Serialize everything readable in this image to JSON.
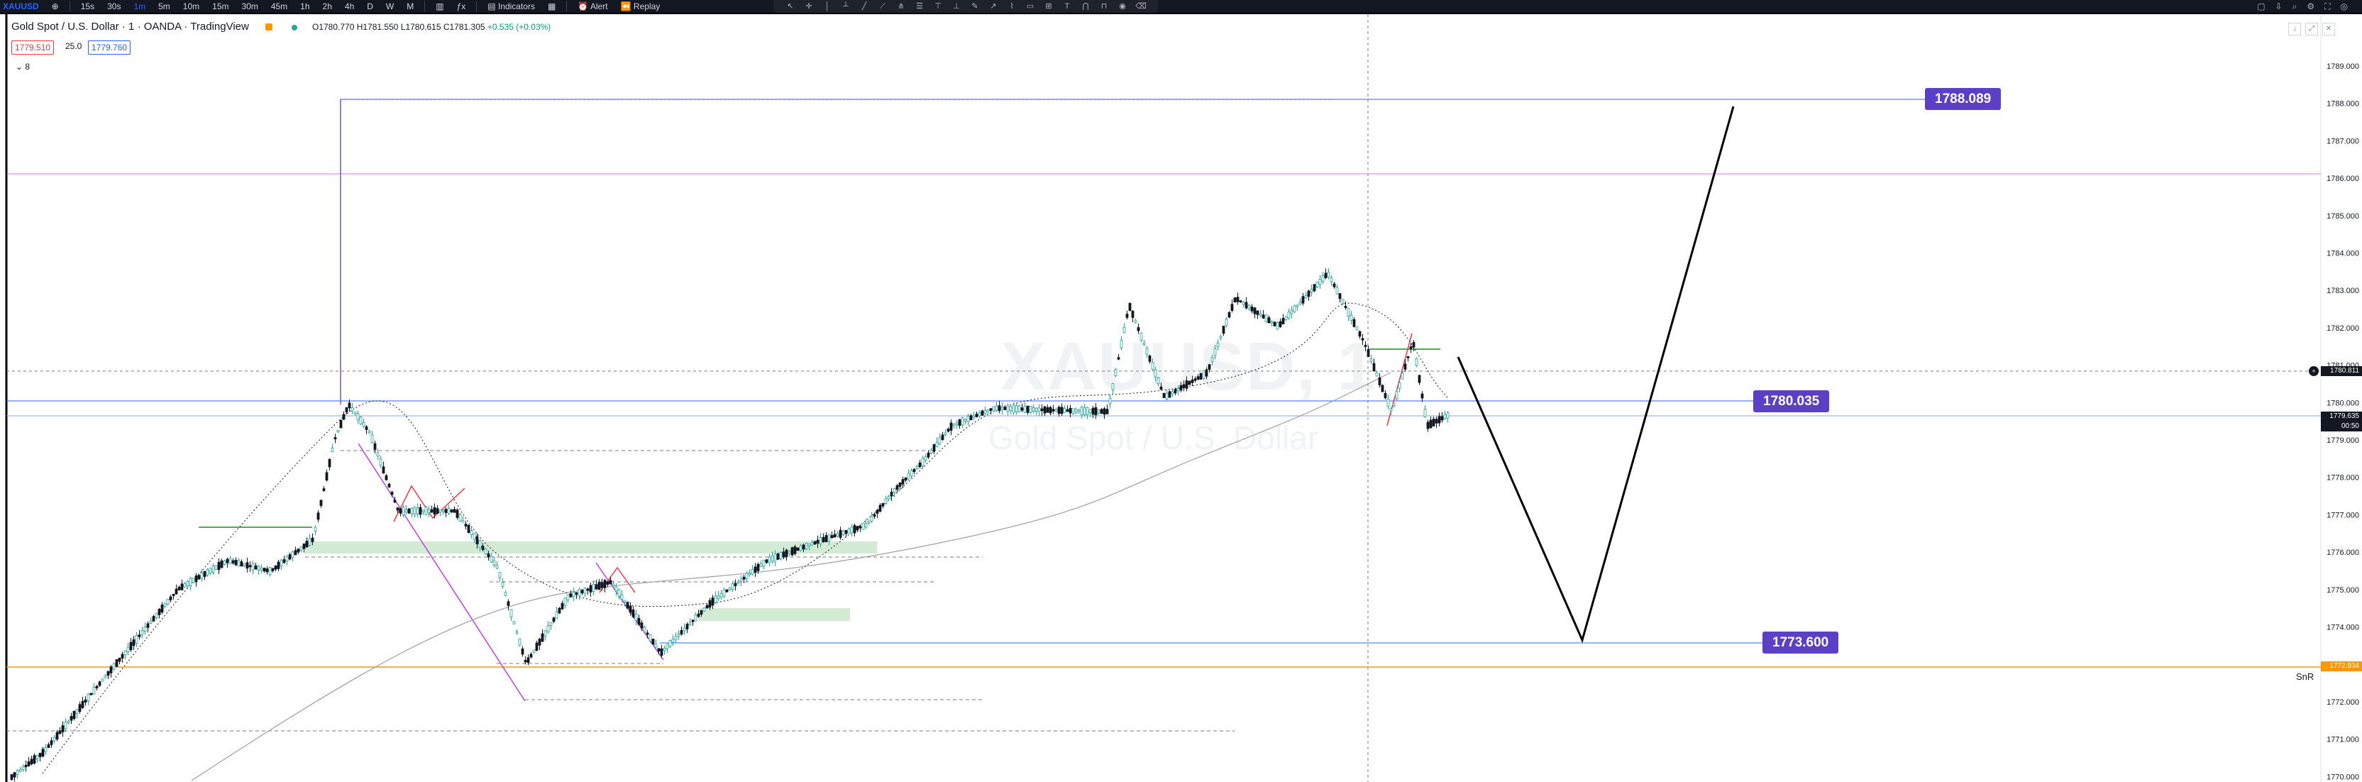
{
  "toolbar": {
    "symbol": "XAUUSD",
    "intervals": [
      "15s",
      "30s",
      "1m",
      "5m",
      "10m",
      "15m",
      "30m",
      "45m",
      "1h",
      "2h",
      "4h",
      "D",
      "W",
      "M"
    ],
    "indicators_label": "Indicators",
    "alert_label": "Alert",
    "replay_label": "Replay"
  },
  "header": {
    "title": "Gold Spot / U.S. Dollar · 1 · OANDA · TradingView",
    "ohlc": "O1780.770 H1781.550 L1780.615 C1781.305",
    "change": "+0.535 (+0.03%)",
    "sell_price": "1779.510",
    "spread": "25.0",
    "buy_price": "1779.760",
    "collapse_count": "8"
  },
  "watermark": {
    "symbol": "XAUUSD, 1",
    "description": "Gold Spot / U.S. Dollar"
  },
  "price_axis": {
    "ticks": [
      "1789.000",
      "1788.000",
      "1787.000",
      "1786.000",
      "1785.000",
      "1784.000",
      "1783.000",
      "1782.000",
      "1781.000",
      "1780.000",
      "1779.000",
      "1778.000",
      "1777.000",
      "1776.000",
      "1775.000",
      "1774.000",
      "1773.000",
      "1772.000",
      "1771.000",
      "1770.000"
    ],
    "crosshair_price": "1780.811",
    "current_price": "1779.635",
    "countdown": "00:50",
    "snr_price": "1772.934",
    "snr_label": "SnR"
  },
  "levels": {
    "upper": "1788.089",
    "middle": "1780.035",
    "lower": "1773.600"
  },
  "colors": {
    "up": "#26a69a",
    "down": "#131722",
    "level_label": "#5b3fc4",
    "level_line": "#2962ff",
    "snr": "#ff9800",
    "zone": "#c8e6c9"
  }
}
